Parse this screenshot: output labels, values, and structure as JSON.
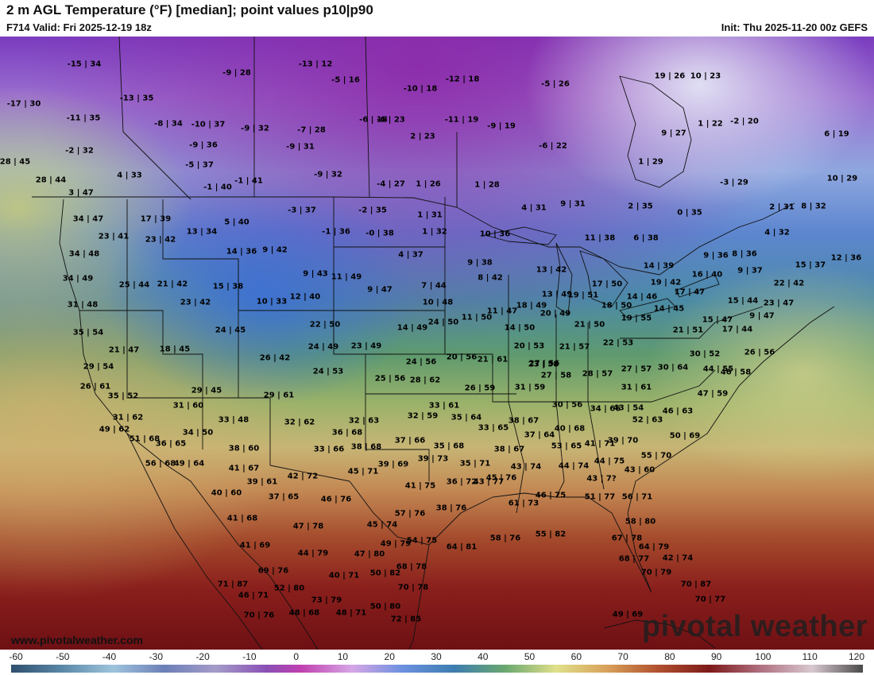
{
  "header": {
    "title": "2 m AGL Temperature (°F) [median]; point values p10|p90",
    "valid": "F714 Valid: Fri 2025-12-19 18z",
    "init": "Init: Thu 2025-11-20 00z GEFS"
  },
  "watermark": "pivotal weather",
  "site": "www.pivotalweather.com",
  "scale": {
    "ticks": [
      "-60",
      "-50",
      "-40",
      "-30",
      "-20",
      "-10",
      "0",
      "10",
      "20",
      "30",
      "40",
      "50",
      "60",
      "70",
      "80",
      "90",
      "100",
      "110",
      "120"
    ],
    "min": -60,
    "max": 120
  },
  "points": [
    "-15|34",
    "-13|12",
    "-9|28",
    "-5|16",
    "-10|18",
    "-12|18",
    "-5|26",
    "19|26",
    "10|23",
    "-17|30",
    "-13|35",
    "-6|18",
    "-11|35",
    "-8|34",
    "-10|37",
    "-9|32",
    "-7|28",
    "-6|23",
    "-11|19",
    "-9|19",
    "1|22",
    "-2|20",
    "9|27",
    "6|19",
    "-2|32",
    "-9|36",
    "-9|31",
    "2|23",
    "-6|22",
    "1|29",
    "28|45",
    "-5|37",
    "4|33",
    "-1|40",
    "-1|41",
    "-9|32",
    "-4|27",
    "1|26",
    "1|28",
    "-3|29",
    "10|29",
    "28|44",
    "3|47",
    "4|31",
    "9|31",
    "2|35",
    "0|35",
    "2|31",
    "8|32",
    "17|39",
    "-3|37",
    "-2|35",
    "34|47",
    "5|40",
    "1|31",
    "23|41",
    "23|42",
    "13|34",
    "-1|36",
    "-0|38",
    "1|32",
    "10|36",
    "11|38",
    "6|38",
    "4|32",
    "34|48",
    "14|36",
    "9|42",
    "4|37",
    "9|36",
    "8|36",
    "15|37",
    "12|36",
    "9|38",
    "13|42",
    "14|39",
    "34|49",
    "9|43",
    "11|49",
    "16|40",
    "9|37",
    "22|42",
    "25|44",
    "21|42",
    "15|38",
    "8|42",
    "19|42",
    "17|47",
    "10|33",
    "12|40",
    "9|47",
    "7|44",
    "17|50",
    "13|49",
    "19|51",
    "31|48",
    "23|42",
    "10|48",
    "18|50",
    "14|46",
    "14|45",
    "15|44",
    "23|47",
    "35|54",
    "24|45",
    "22|50",
    "14|49",
    "11|50",
    "11|47",
    "18|49",
    "20|49",
    "19|55",
    "21|50",
    "9|47",
    "24|50",
    "17|44",
    "21|51",
    "15|47",
    "14|50",
    "20|53",
    "21|57",
    "22|53",
    "23|58",
    "26|56",
    "21|47",
    "18|45",
    "26|42",
    "24|49",
    "23|49",
    "24|56",
    "20|56",
    "21|61",
    "27|56",
    "30|52",
    "44|55",
    "29|54",
    "24|53",
    "25|56",
    "28|62",
    "26|59",
    "27|58",
    "28|57",
    "27|57",
    "30|64",
    "46|58",
    "26|61",
    "31|59",
    "31|61",
    "47|59",
    "35|52",
    "29|45",
    "29|61",
    "33|61",
    "30|56",
    "43|54",
    "31|60",
    "32|59",
    "34|66",
    "46|63",
    "31|62",
    "32|63",
    "35|64",
    "33|65",
    "38|67",
    "52|63",
    "49|62",
    "34|50",
    "33|48",
    "32|62",
    "36|68",
    "37|64",
    "40|68",
    "41|71",
    "39|70",
    "50|69",
    "51|68",
    "36|65",
    "37|66",
    "35|68",
    "38|67",
    "53|65",
    "38|60",
    "33|66",
    "38|68",
    "39|69",
    "39|73",
    "35|71",
    "43|74",
    "44|74",
    "44|75",
    "55|70",
    "56|68",
    "49|64",
    "41|67",
    "45|71",
    "43|60",
    "39|61",
    "42|72",
    "41|75",
    "36|72",
    "43|77",
    "43|7?",
    "46|75",
    "51|77",
    "56|71",
    "40|60",
    "37|65",
    "46|76",
    "38|76",
    "45|76",
    "61|73",
    "41|68",
    "47|78",
    "45|74",
    "57|76",
    "58|76",
    "55|82",
    "58|80",
    "67|78",
    "41|69",
    "44|79",
    "47|80",
    "49|79",
    "54|75",
    "64|81",
    "64|79",
    "68|77",
    "42|74",
    "40|71",
    "50|82",
    "68|78",
    "70|79",
    "69|76",
    "71|87",
    "52|80",
    "70|78",
    "70|87",
    "46|71",
    "73|79",
    "70|77",
    "70|76",
    "48|68",
    "48|71",
    "50|80",
    "72|85",
    "49|69"
  ]
}
